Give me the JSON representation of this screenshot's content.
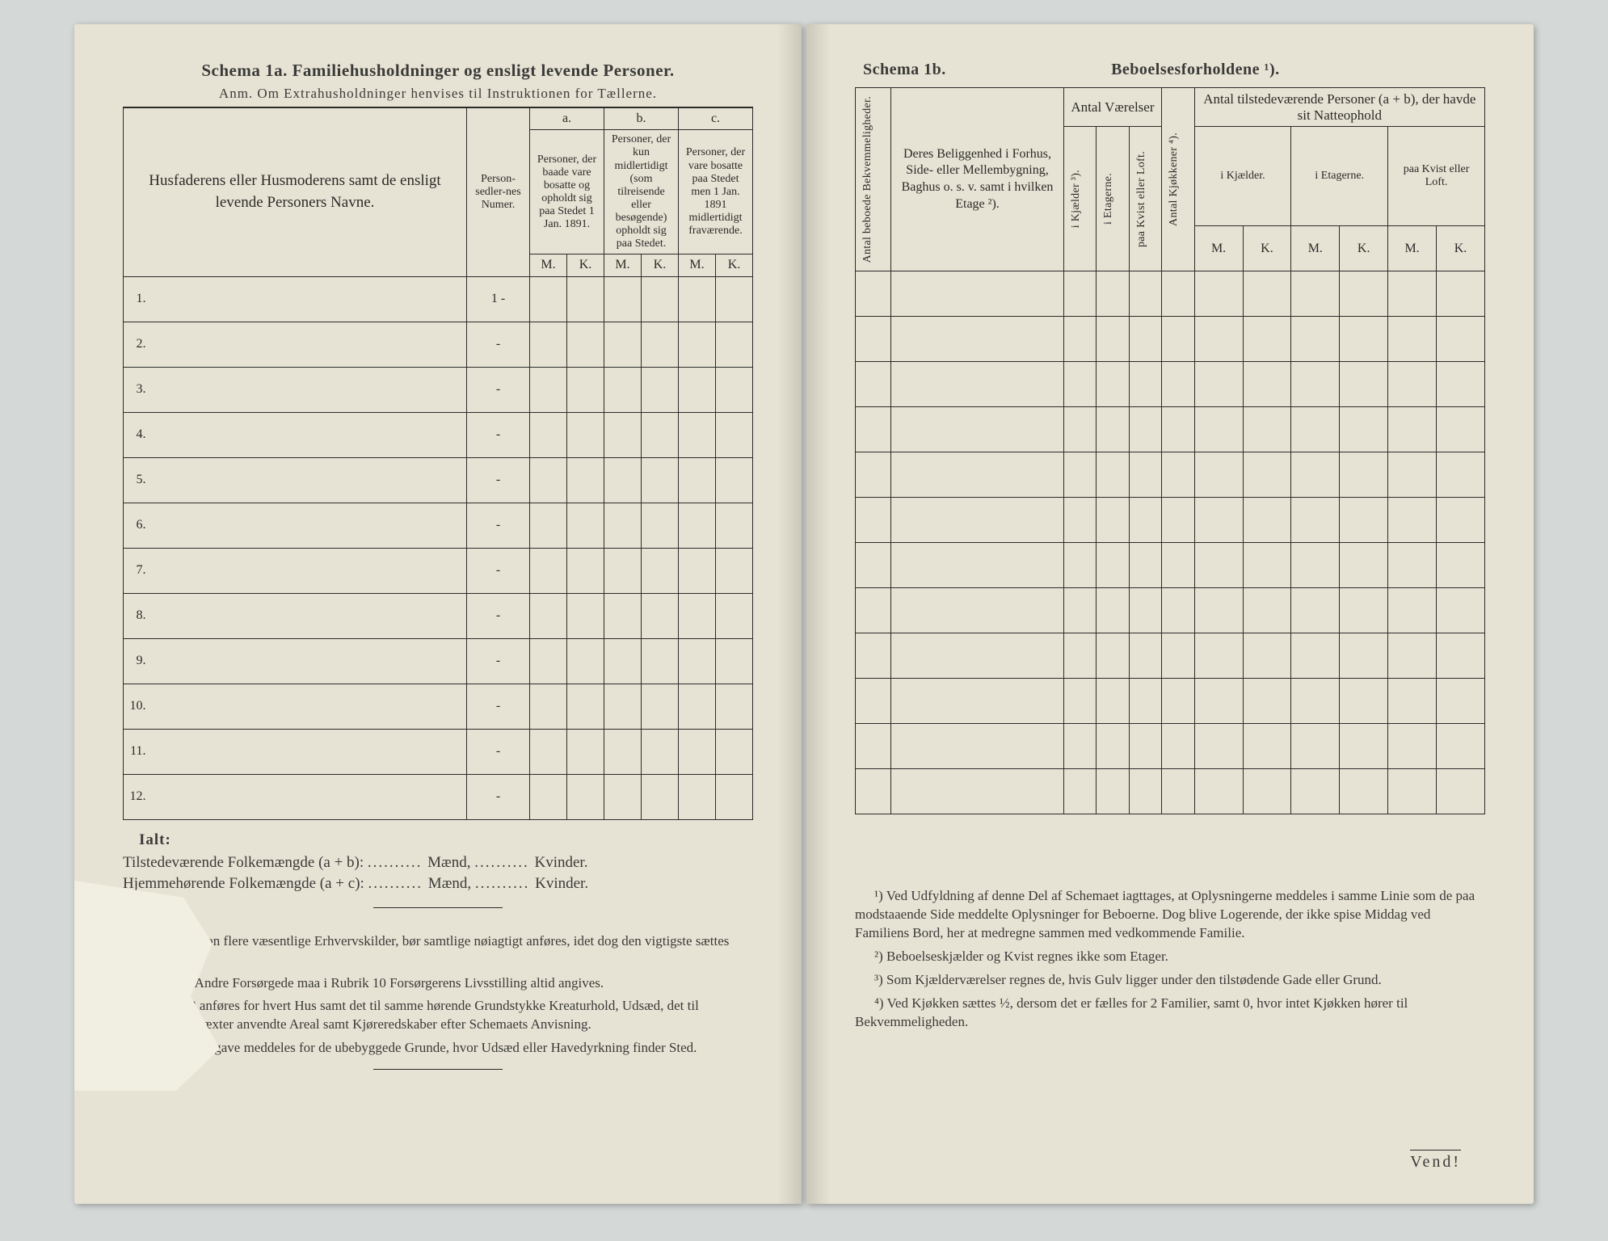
{
  "left": {
    "title": "Schema 1a.  Familiehusholdninger og ensligt levende Personer.",
    "anm": "Anm.  Om Extrahusholdninger henvises til Instruktionen for Tællerne.",
    "col_name": "Husfaderens eller Husmoderens samt de ensligt levende Personers Navne.",
    "col_personsedler": "Person-sedler-nes Numer.",
    "sec_a": "a.",
    "sec_b": "b.",
    "sec_c": "c.",
    "desc_a": "Personer, der baade vare bosatte og opholdt sig paa Stedet 1 Jan. 1891.",
    "desc_b": "Personer, der kun midlertidigt (som tilreisende eller besøgende) opholdt sig paa Stedet.",
    "desc_c": "Personer, der vare bosatte paa Stedet men 1 Jan. 1891 midlertidigt fraværende.",
    "M": "M.",
    "K": "K.",
    "rows": [
      "1.",
      "2.",
      "3.",
      "4.",
      "5.",
      "6.",
      "7.",
      "8.",
      "9.",
      "10.",
      "11.",
      "12."
    ],
    "pseq": [
      "1 -",
      "-",
      "-",
      "-",
      "-",
      "-",
      "-",
      "-",
      "-",
      "-",
      "-",
      "-"
    ],
    "ialt": "Ialt:",
    "sum1_a": "Tilstedeværende Folkemængde (a + b):",
    "sum1_b": "Mænd,",
    "sum1_c": "Kvinder.",
    "sum2_a": "Hjemmehørende Folkemængde (a + c):",
    "fn1": "Har en Person flere væsentlige Erhvervskilder, bør samtlige nøiagtigt anføres, idet dog den vigtigste sættes først.",
    "fn2": "For de af Andre Forsørgede maa i Rubrik 10 Forsørgerens Livsstilling altid angives.",
    "fn3": "Schema 3 anføres for hvert Hus samt det til samme hørende Grundstykke Kreaturhold, Udsæd, det til Kjøkkenhavevæxter anvendte Areal samt Kjøreredskaber efter Schemaets Anvisning.",
    "fn4": "Lignende Opgave meddeles for de ubebyggede Grunde, hvor Udsæd eller Havedyrkning finder Sted."
  },
  "right": {
    "title_a": "Schema 1b.",
    "title_b": "Beboelsesforholdene ¹).",
    "v_antal": "Antal beboede Bekvemmeligheder.",
    "col_belig": "Deres Beliggenhed i Forhus, Side- eller Mellembygning, Baghus o. s. v. samt i hvilken Etage ²).",
    "grp_vaerelser": "Antal Værelser",
    "v_kjaelder": "i Kjælder ³).",
    "v_etagerne": "i Etagerne.",
    "v_kvist": "paa Kvist eller Loft.",
    "v_kjokken": "Antal Kjøkkener ⁴).",
    "grp_persons": "Antal tilstedeværende Personer (a + b), der havde sit Natteophold",
    "sub_kjaelder": "i Kjælder.",
    "sub_etagerne": "i Etagerne.",
    "sub_kvist": "paa Kvist eller Loft.",
    "M": "M.",
    "K": "K.",
    "fn1": "¹) Ved Udfyldning af denne Del af Schemaet iagttages, at Oplysningerne meddeles i samme Linie som de paa modstaaende Side meddelte Oplysninger for Beboerne. Dog blive Logerende, der ikke spise Middag ved Familiens Bord, her at medregne sammen med vedkommende Familie.",
    "fn2": "²) Beboelseskjælder og Kvist regnes ikke som Etager.",
    "fn3": "³) Som Kjælderværelser regnes de, hvis Gulv ligger under den tilstødende Gade eller Grund.",
    "fn4": "⁴) Ved Kjøkken sættes ½, dersom det er fælles for 2 Familier, samt 0, hvor intet Kjøkken hører til Bekvemmeligheden.",
    "vend": "Vend!"
  }
}
